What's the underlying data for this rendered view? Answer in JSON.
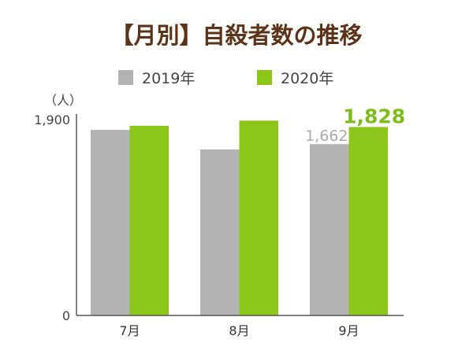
{
  "chart_data": {
    "type": "bar",
    "title": "【月別】自殺者数の推移",
    "ylabel": "（人）",
    "ylim": [
      0,
      1900
    ],
    "yticks": [
      "0",
      "1,900"
    ],
    "categories": [
      "7月",
      "8月",
      "9月"
    ],
    "series": [
      {
        "name": "2019年",
        "color": "#b3b3b3",
        "values": [
          1800,
          1610,
          1662
        ]
      },
      {
        "name": "2020年",
        "color": "#8cc61a",
        "values": [
          1840,
          1890,
          1828
        ]
      }
    ],
    "data_labels": [
      {
        "series": 0,
        "category": 2,
        "text": "1,662",
        "color": "#aaaaaa"
      },
      {
        "series": 1,
        "category": 2,
        "text": "1,828",
        "color": "#7cbf1a"
      }
    ],
    "legend": "top-center",
    "grid": false
  }
}
